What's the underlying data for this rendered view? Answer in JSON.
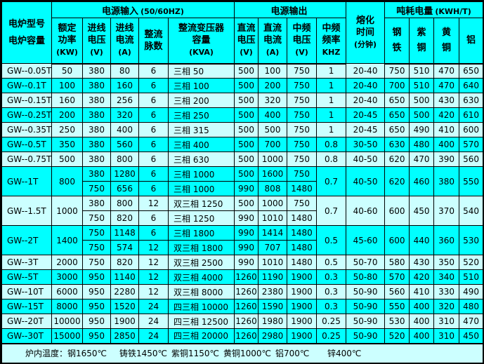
{
  "colors": {
    "row_cyan": "#00ffff",
    "row_light": "#ccffff",
    "border": "#000000",
    "text": "#000000",
    "header_bg": "#00ffff"
  },
  "table": {
    "header": {
      "model": {
        "lines": [
          "电炉型号",
          "电炉容量"
        ]
      },
      "groups": {
        "input": {
          "title": "电源输入",
          "subtitle": "(50/60HZ)"
        },
        "output": {
          "title": "电源输出",
          "subtitle": ""
        },
        "consumption": {
          "title": "吨耗电量",
          "subtitle": "(KWH/T)"
        }
      },
      "melting": {
        "lines": [
          "熔化",
          "时间",
          "(分钟)"
        ]
      },
      "columns": [
        {
          "id": "rated-power",
          "lines": [
            "额定",
            "功率",
            "(KW)"
          ]
        },
        {
          "id": "line-voltage",
          "lines": [
            "进线",
            "电压",
            "(V)"
          ]
        },
        {
          "id": "line-current",
          "lines": [
            "进线",
            "电流",
            "(A)"
          ]
        },
        {
          "id": "rectifier-pulses",
          "lines": [
            "整流",
            "脉数",
            ""
          ]
        },
        {
          "id": "transformer-capacity",
          "lines": [
            "整流变压器",
            "容量",
            "(KVA)"
          ]
        },
        {
          "id": "dc-voltage",
          "lines": [
            "直流",
            "电压",
            "(V)"
          ]
        },
        {
          "id": "dc-current",
          "lines": [
            "直流",
            "电流",
            "(A)"
          ]
        },
        {
          "id": "mf-voltage",
          "lines": [
            "中频",
            "电压",
            "(V)"
          ]
        },
        {
          "id": "mf-frequency",
          "lines": [
            "中频",
            "频率",
            "KHZ"
          ]
        },
        {
          "id": "steel-iron",
          "lines": [
            "钢",
            "铁"
          ]
        },
        {
          "id": "copper",
          "lines": [
            "紫",
            "铜"
          ]
        },
        {
          "id": "brass",
          "lines": [
            "黄",
            "铜"
          ]
        },
        {
          "id": "aluminum",
          "lines": [
            "铝"
          ]
        }
      ]
    },
    "rows": [
      {
        "model": "GW--0.05T",
        "rated_power": "50",
        "shade": "light",
        "subrows": [
          {
            "cells": [
              "380",
              "80",
              "6",
              "三相 50",
              "500",
              "100",
              "750"
            ]
          }
        ],
        "mf_frequency": "1",
        "melting_time": "20-40",
        "consumption": [
          "750",
          "510",
          "470",
          "650"
        ]
      },
      {
        "model": "GW--0.1T",
        "rated_power": "100",
        "shade": "cyan",
        "subrows": [
          {
            "cells": [
              "380",
              "160",
              "6",
              "三相 100",
              "500",
              "200",
              "750"
            ]
          }
        ],
        "mf_frequency": "1",
        "melting_time": "20-40",
        "consumption": [
          "700",
          "510",
          "470",
          "640"
        ]
      },
      {
        "model": "GW--0.15T",
        "rated_power": "160",
        "shade": "light",
        "subrows": [
          {
            "cells": [
              "380",
              "256",
              "6",
              "三相 200",
              "500",
              "320",
              "750"
            ]
          }
        ],
        "mf_frequency": "1",
        "melting_time": "20-40",
        "consumption": [
          "650",
          "500",
          "430",
          "630"
        ]
      },
      {
        "model": "GW--0.25T",
        "rated_power": "200",
        "shade": "cyan",
        "subrows": [
          {
            "cells": [
              "380",
              "320",
              "6",
              "三相 250",
              "500",
              "400",
              "750"
            ]
          }
        ],
        "mf_frequency": "1",
        "melting_time": "20-45",
        "consumption": [
          "650",
          "500",
          "420",
          "610"
        ]
      },
      {
        "model": "GW--0.35T",
        "rated_power": "250",
        "shade": "light",
        "subrows": [
          {
            "cells": [
              "380",
              "400",
              "6",
              "三相 315",
              "500",
              "500",
              "750"
            ]
          }
        ],
        "mf_frequency": "1",
        "melting_time": "20-45",
        "consumption": [
          "650",
          "490",
          "410",
          "600"
        ]
      },
      {
        "model": "GW--0.5T",
        "rated_power": "350",
        "shade": "cyan",
        "subrows": [
          {
            "cells": [
              "380",
              "560",
              "6",
              "三相 400",
              "500",
              "700",
              "750"
            ]
          }
        ],
        "mf_frequency": "0.8",
        "melting_time": "30-50",
        "consumption": [
          "630",
          "480",
          "400",
          "570"
        ]
      },
      {
        "model": "GW--0.75T",
        "rated_power": "500",
        "shade": "light",
        "subrows": [
          {
            "cells": [
              "380",
              "800",
              "6",
              "三相 630",
              "500",
              "1000",
              "750"
            ]
          }
        ],
        "mf_frequency": "0.8",
        "melting_time": "40-50",
        "consumption": [
          "620",
          "470",
          "390",
          "560"
        ]
      },
      {
        "model": "GW--1T",
        "rated_power": "800",
        "shade": "cyan",
        "subrows": [
          {
            "cells": [
              "380",
              "1280",
              "6",
              "三相 1000",
              "500",
              "1600",
              "750"
            ]
          },
          {
            "cells": [
              "750",
              "656",
              "6",
              "三相 1000",
              "990",
              "808",
              "1480"
            ]
          }
        ],
        "mf_frequency": "0.7",
        "melting_time": "40-50",
        "consumption": [
          "620",
          "460",
          "380",
          "550"
        ]
      },
      {
        "model": "GW--1.5T",
        "rated_power": "1000",
        "shade": "light",
        "subrows": [
          {
            "cells": [
              "380",
              "800",
              "12",
              "双三相 1250",
              "500",
              "1000",
              "750"
            ]
          },
          {
            "cells": [
              "750",
              "820",
              "6",
              "三相 1250",
              "990",
              "1010",
              "1480"
            ]
          }
        ],
        "mf_frequency": "0.7",
        "melting_time": "40-60",
        "consumption": [
          "600",
          "450",
          "370",
          "540"
        ]
      },
      {
        "model": "GW--2T",
        "rated_power": "1400",
        "shade": "cyan",
        "subrows": [
          {
            "cells": [
              "750",
              "1148",
              "6",
              "三相 1800",
              "990",
              "1414",
              "1480"
            ]
          },
          {
            "cells": [
              "750",
              "574",
              "12",
              "双三相 1800",
              "990",
              "707",
              "1480"
            ]
          }
        ],
        "mf_frequency": "0.5",
        "melting_time": "45-60",
        "consumption": [
          "600",
          "440",
          "360",
          "530"
        ]
      },
      {
        "model": "GW--3T",
        "rated_power": "2000",
        "shade": "light",
        "subrows": [
          {
            "cells": [
              "750",
              "820",
              "12",
              "双三相 2500",
              "990",
              "1010",
              "1480"
            ]
          }
        ],
        "mf_frequency": "0.5",
        "melting_time": "50-70",
        "consumption": [
          "580",
          "430",
          "350",
          "520"
        ]
      },
      {
        "model": "GW--5T",
        "rated_power": "3000",
        "shade": "cyan",
        "subrows": [
          {
            "cells": [
              "950",
              "1140",
              "12",
              "双三相 4000",
              "1260",
              "1190",
              "1900"
            ]
          }
        ],
        "mf_frequency": "0.3",
        "melting_time": "50-80",
        "consumption": [
          "570",
          "420",
          "340",
          "510"
        ]
      },
      {
        "model": "GW--10T",
        "rated_power": "6000",
        "shade": "light",
        "subrows": [
          {
            "cells": [
              "950",
              "2280",
              "12",
              "双三相 8000",
              "1260",
              "2380",
              "1900"
            ]
          }
        ],
        "mf_frequency": "0.3",
        "melting_time": "50-90",
        "consumption": [
          "560",
          "410",
          "330",
          "490"
        ]
      },
      {
        "model": "GW--15T",
        "rated_power": "8000",
        "shade": "cyan",
        "subrows": [
          {
            "cells": [
              "950",
              "1520",
              "24",
              "四三相 10000",
              "1260",
              "1590",
              "1900"
            ]
          }
        ],
        "mf_frequency": "0.3",
        "melting_time": "50-90",
        "consumption": [
          "550",
          "400",
          "320",
          "480"
        ]
      },
      {
        "model": "GW--20T",
        "rated_power": "10000",
        "shade": "light",
        "subrows": [
          {
            "cells": [
              "950",
              "1900",
              "24",
              "四三相 12500",
              "1260",
              "1980",
              "1900"
            ]
          }
        ],
        "mf_frequency": "0.25",
        "melting_time": "50-90",
        "consumption": [
          "530",
          "400",
          "310",
          "470"
        ]
      },
      {
        "model": "GW--30T",
        "rated_power": "15000",
        "shade": "cyan",
        "subrows": [
          {
            "cells": [
              "950",
              "2850",
              "24",
              "四三相 20000",
              "1260",
              "2980",
              "1900"
            ]
          }
        ],
        "mf_frequency": "0.25",
        "melting_time": "50-90",
        "consumption": [
          "520",
          "400",
          "310",
          "450"
        ]
      }
    ]
  },
  "footer": {
    "label": "炉内温度：",
    "items": [
      "钢1650℃",
      "铸铁1450℃",
      "紫铜1150℃",
      "黄铜1000℃",
      "铝700℃",
      "锌400℃"
    ]
  }
}
